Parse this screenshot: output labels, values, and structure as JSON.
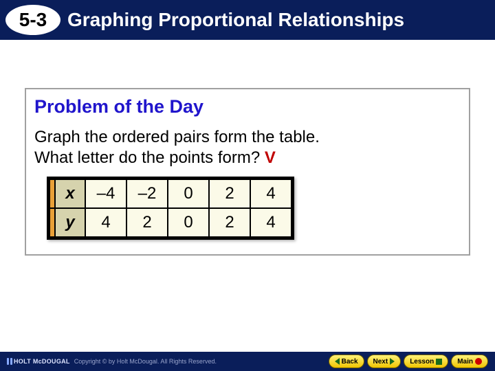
{
  "header": {
    "lesson_number": "5-3",
    "title": "Graphing Proportional Relationships",
    "bg_color": "#0a1e5a",
    "title_color": "#ffffff"
  },
  "problem": {
    "heading": "Problem of the Day",
    "heading_color": "#2015cc",
    "text_line1": "Graph the ordered pairs form the table.",
    "text_line2_a": "What letter do the points form?  ",
    "answer": "V",
    "answer_color": "#c00000",
    "border_color": "#a0a0a0"
  },
  "table": {
    "row_labels": [
      "x",
      "y"
    ],
    "x_values": [
      "–4",
      "–2",
      "0",
      "2",
      "4"
    ],
    "y_values": [
      "4",
      "2",
      "0",
      "2",
      "4"
    ],
    "header_bg": "#d6d3ad",
    "cell_bg": "#fbfae8",
    "left_accent": "#e8a038",
    "border_color": "#000000"
  },
  "footer": {
    "brand": "HOLT McDOUGAL",
    "copyright": "Copyright © by Holt McDougal. All Rights Reserved.",
    "buttons": {
      "back": "Back",
      "next": "Next",
      "lesson": "Lesson",
      "main": "Main"
    },
    "btn_bg_top": "#fff27a",
    "btn_bg_bottom": "#f0c400"
  }
}
